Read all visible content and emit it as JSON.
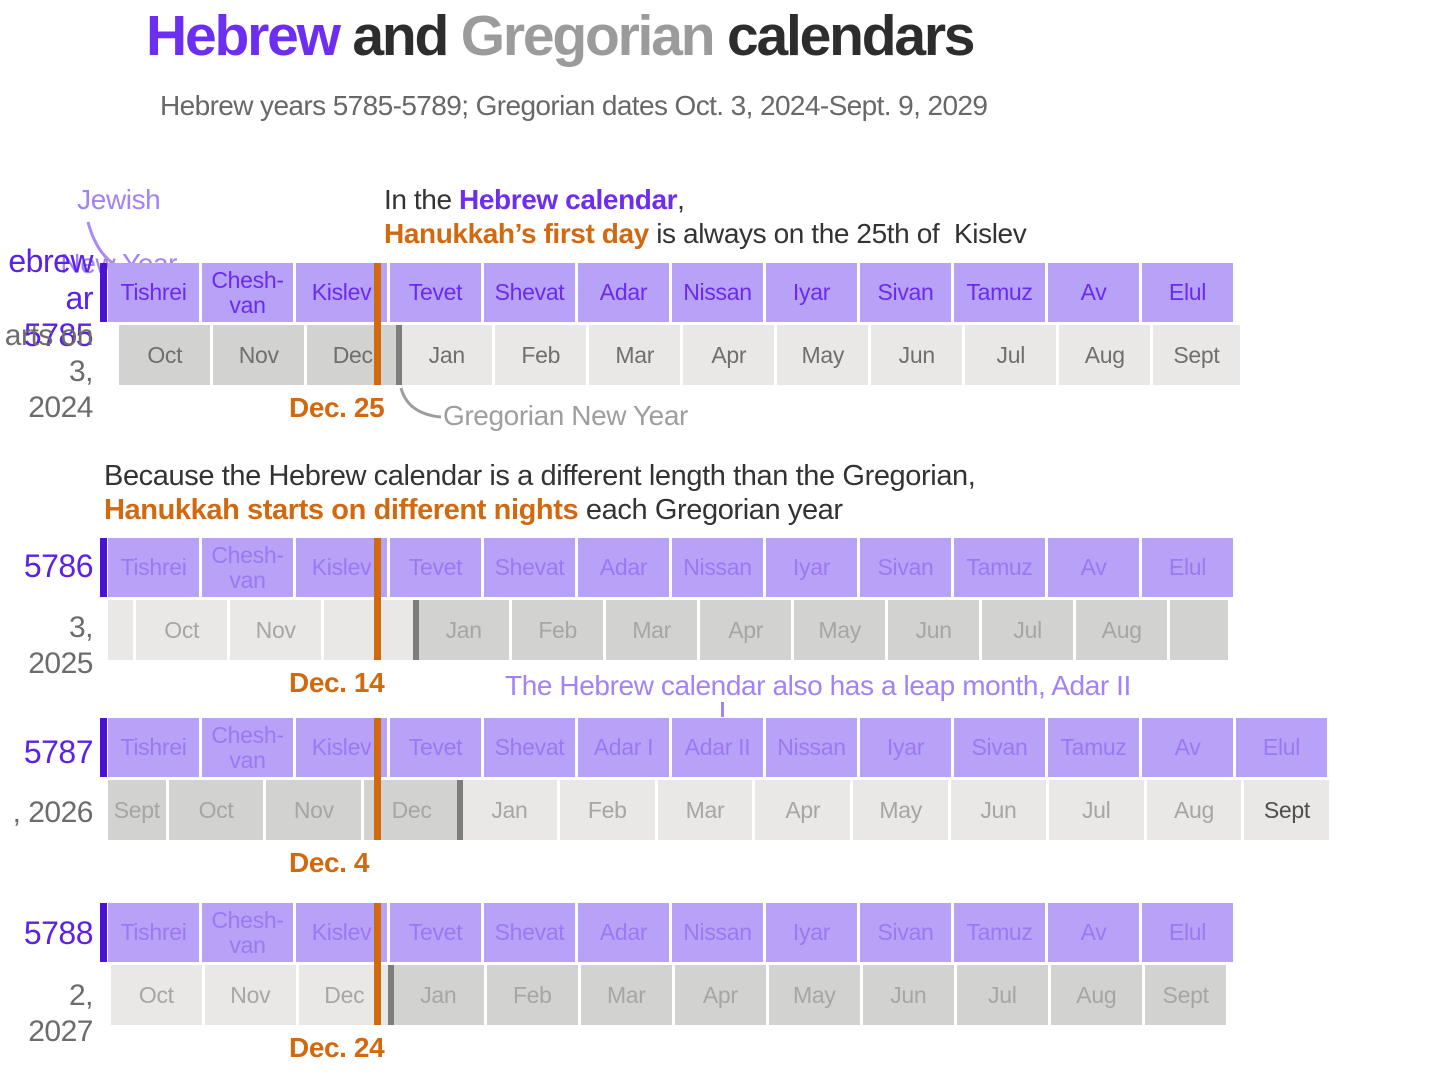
{
  "title": {
    "part1": "Hebrew",
    "part2": " and ",
    "part3": "Gregorian",
    "part4": " calendars"
  },
  "subtitle": {
    "text": "Hebrew years 5785-5789; Gregorian dates Oct. 3, 2024-Sept. 9, 2029"
  },
  "colors": {
    "accent_purple": "#6d2ef2",
    "soft_purple": "#b7a2f8",
    "annotation_purple": "#a382f7",
    "marker_purple": "#4a11d7",
    "accent_orange": "#d2690e",
    "gray_box_dark": "#d2d2d1",
    "gray_box_light": "#e9e8e7",
    "new_year_divider": "#7d7d7d"
  },
  "annotations": {
    "jewish_new_year": {
      "line1": "Jewish",
      "line2": "New Year"
    },
    "para1": {
      "pre": "In the ",
      "link": "Hebrew calendar",
      "comma": ",",
      "hanukkah": "Hanukkah’s first day",
      "rest": " is always on the 25th of  Kislev"
    },
    "gregorian_new_year": "Gregorian New Year",
    "para2": {
      "line1": "Because the Hebrew calendar is a different length than the Gregorian,",
      "orange": "Hanukkah starts on different nights",
      "rest": " each Gregorian year"
    },
    "leap": "The Hebrew calendar also has a leap month, Adar II"
  },
  "rows": [
    {
      "hebrew_year_fragments": [
        "ebrew",
        "ar 5785"
      ],
      "start_date_fragments": [
        "arts on",
        "3, 2024"
      ],
      "hanukkah_label": "Dec. 25",
      "first": true,
      "hebrew_months": [
        "Tishrei",
        "Chesh-van",
        "Kislev",
        "Tevet",
        "Shevat",
        "Adar",
        "Nissan",
        "Iyar",
        "Sivan",
        "Tamuz",
        "Av",
        "Elul"
      ],
      "greg_offset_units": 0.12,
      "gregorian_cells": [
        {
          "label": "Oct",
          "shade": "dark"
        },
        {
          "label": "Nov",
          "shade": "dark"
        },
        {
          "label": "Dec",
          "shade": "dark"
        },
        {
          "label": "Jan",
          "shade": "light"
        },
        {
          "label": "Feb",
          "shade": "light"
        },
        {
          "label": "Mar",
          "shade": "light"
        },
        {
          "label": "Apr",
          "shade": "light"
        },
        {
          "label": "May",
          "shade": "light"
        },
        {
          "label": "Jun",
          "shade": "light"
        },
        {
          "label": "Jul",
          "shade": "light"
        },
        {
          "label": "Aug",
          "shade": "light"
        },
        {
          "label": "Sept",
          "shade": "light",
          "units": 0.95
        }
      ]
    },
    {
      "hebrew_year_fragments": [
        "5786"
      ],
      "start_date_fragments": [
        "3, 2025"
      ],
      "hanukkah_label": "Dec. 14",
      "first": false,
      "hebrew_months": [
        "Tishrei",
        "Chesh-van",
        "Kislev",
        "Tevet",
        "Shevat",
        "Adar",
        "Nissan",
        "Iyar",
        "Sivan",
        "Tamuz",
        "Av",
        "Elul"
      ],
      "greg_offset_units": 0,
      "gregorian_cells": [
        {
          "label": "",
          "shade": "light",
          "units": 0.3
        },
        {
          "label": "Oct",
          "shade": "light"
        },
        {
          "label": "Nov",
          "shade": "light"
        },
        {
          "label": "",
          "shade": "light"
        },
        {
          "label": "Jan",
          "shade": "dark"
        },
        {
          "label": "Feb",
          "shade": "dark"
        },
        {
          "label": "Mar",
          "shade": "dark"
        },
        {
          "label": "Apr",
          "shade": "dark"
        },
        {
          "label": "May",
          "shade": "dark"
        },
        {
          "label": "Jun",
          "shade": "dark"
        },
        {
          "label": "Jul",
          "shade": "dark"
        },
        {
          "label": "Aug",
          "shade": "dark"
        },
        {
          "label": "",
          "shade": "dark",
          "units": 0.65
        }
      ]
    },
    {
      "hebrew_year_fragments": [
        "5787"
      ],
      "start_date_fragments": [
        ", 2026"
      ],
      "hanukkah_label": "Dec. 4",
      "first": false,
      "hebrew_months": [
        "Tishrei",
        "Chesh-van",
        "Kislev",
        "Tevet",
        "Shevat",
        "Adar I",
        "Adar II",
        "Nissan",
        "Iyar",
        "Sivan",
        "Tamuz",
        "Av",
        "Elul"
      ],
      "greg_offset_units": 0,
      "greg_pitch": 97.8,
      "gregorian_cells": [
        {
          "label": "Sept",
          "shade": "dark",
          "units": 0.62
        },
        {
          "label": "Oct",
          "shade": "dark"
        },
        {
          "label": "Nov",
          "shade": "dark"
        },
        {
          "label": "Dec",
          "shade": "dark"
        },
        {
          "label": "Jan",
          "shade": "light"
        },
        {
          "label": "Feb",
          "shade": "light"
        },
        {
          "label": "Mar",
          "shade": "light"
        },
        {
          "label": "Apr",
          "shade": "light"
        },
        {
          "label": "May",
          "shade": "light"
        },
        {
          "label": "Jun",
          "shade": "light"
        },
        {
          "label": "Jul",
          "shade": "light"
        },
        {
          "label": "Aug",
          "shade": "light"
        },
        {
          "label": "Sept",
          "shade": "light",
          "units": 0.9,
          "emph": true
        }
      ]
    },
    {
      "hebrew_year_fragments": [
        "5788"
      ],
      "start_date_fragments": [
        "2, 2027"
      ],
      "hanukkah_label": "Dec. 24",
      "first": false,
      "hebrew_months": [
        "Tishrei",
        "Chesh-van",
        "Kislev",
        "Tevet",
        "Shevat",
        "Adar",
        "Nissan",
        "Iyar",
        "Sivan",
        "Tamuz",
        "Av",
        "Elul"
      ],
      "greg_offset_units": 0.03,
      "gregorian_cells": [
        {
          "label": "Oct",
          "shade": "light"
        },
        {
          "label": "Nov",
          "shade": "light"
        },
        {
          "label": "Dec",
          "shade": "light"
        },
        {
          "label": "Jan",
          "shade": "dark"
        },
        {
          "label": "Feb",
          "shade": "dark"
        },
        {
          "label": "Mar",
          "shade": "dark"
        },
        {
          "label": "Apr",
          "shade": "dark"
        },
        {
          "label": "May",
          "shade": "dark"
        },
        {
          "label": "Jun",
          "shade": "dark"
        },
        {
          "label": "Jul",
          "shade": "dark"
        },
        {
          "label": "Aug",
          "shade": "dark"
        },
        {
          "label": "Sept",
          "shade": "dark",
          "units": 0.9
        }
      ]
    }
  ],
  "chart_data": {
    "type": "timeline",
    "title": "Hebrew and Gregorian calendars",
    "subtitle": "Hebrew years 5785-5789; Gregorian dates Oct. 3, 2024-Sept. 9, 2029",
    "rows": [
      {
        "hebrew_year": 5785,
        "leap_year": false,
        "hebrew_months": [
          "Tishrei",
          "Chesh-van",
          "Kislev",
          "Tevet",
          "Shevat",
          "Adar",
          "Nissan",
          "Iyar",
          "Sivan",
          "Tamuz",
          "Av",
          "Elul"
        ],
        "gregorian_months_visible": [
          "Oct",
          "Nov",
          "Dec",
          "Jan",
          "Feb",
          "Mar",
          "Apr",
          "May",
          "Jun",
          "Jul",
          "Aug",
          "Sept"
        ],
        "gregorian_year_shading": {
          "dark": "Oct-Dec 2024",
          "light": "Jan-Sept 2025"
        },
        "hanukkah_first_day": "Dec. 25",
        "markers": [
          "Jewish New Year at Tishrei start",
          "Gregorian New Year between Dec and Jan"
        ]
      },
      {
        "hebrew_year": 5786,
        "leap_year": false,
        "hebrew_months": [
          "Tishrei",
          "Chesh-van",
          "Kislev",
          "Tevet",
          "Shevat",
          "Adar",
          "Nissan",
          "Iyar",
          "Sivan",
          "Tamuz",
          "Av",
          "Elul"
        ],
        "gregorian_months_visible": [
          "Oct",
          "Nov",
          "Jan",
          "Feb",
          "Mar",
          "Apr",
          "May",
          "Jun",
          "Jul",
          "Aug"
        ],
        "gregorian_year_shading": {
          "light": "Sept-Dec 2025",
          "dark": "Jan-Aug 2026"
        },
        "hanukkah_first_day": "Dec. 14",
        "markers": [
          "Jewish New Year at Tishrei start",
          "Gregorian New Year between Dec and Jan"
        ]
      },
      {
        "hebrew_year": 5787,
        "leap_year": true,
        "leap_month": "Adar II",
        "hebrew_months": [
          "Tishrei",
          "Chesh-van",
          "Kislev",
          "Tevet",
          "Shevat",
          "Adar I",
          "Adar II",
          "Nissan",
          "Iyar",
          "Sivan",
          "Tamuz",
          "Av",
          "Elul"
        ],
        "gregorian_months_visible": [
          "Sept",
          "Oct",
          "Nov",
          "Dec",
          "Jan",
          "Feb",
          "Mar",
          "Apr",
          "May",
          "Jun",
          "Jul",
          "Aug",
          "Sept"
        ],
        "gregorian_year_shading": {
          "dark": "Sept-Dec 2026",
          "light": "Jan-Sept 2027"
        },
        "hanukkah_first_day": "Dec. 4",
        "markers": [
          "Jewish New Year at Tishrei start",
          "Gregorian New Year between Dec and Jan"
        ]
      },
      {
        "hebrew_year": 5788,
        "leap_year": false,
        "hebrew_months": [
          "Tishrei",
          "Chesh-van",
          "Kislev",
          "Tevet",
          "Shevat",
          "Adar",
          "Nissan",
          "Iyar",
          "Sivan",
          "Tamuz",
          "Av",
          "Elul"
        ],
        "gregorian_months_visible": [
          "Oct",
          "Nov",
          "Dec",
          "Jan",
          "Feb",
          "Mar",
          "Apr",
          "May",
          "Jun",
          "Jul",
          "Aug",
          "Sept"
        ],
        "gregorian_year_shading": {
          "light": "Oct-Dec 2027",
          "dark": "Jan-Sept 2028"
        },
        "hanukkah_first_day": "Dec. 24",
        "markers": [
          "Jewish New Year at Tishrei start",
          "Gregorian New Year between Dec and Jan"
        ]
      }
    ],
    "notes": [
      "In the Hebrew calendar, Hanukkah’s first day is always on the 25th of Kislev",
      "Because the Hebrew calendar is a different length than the Gregorian, Hanukkah starts on different nights each Gregorian year",
      "The Hebrew calendar also has a leap month, Adar II"
    ]
  }
}
